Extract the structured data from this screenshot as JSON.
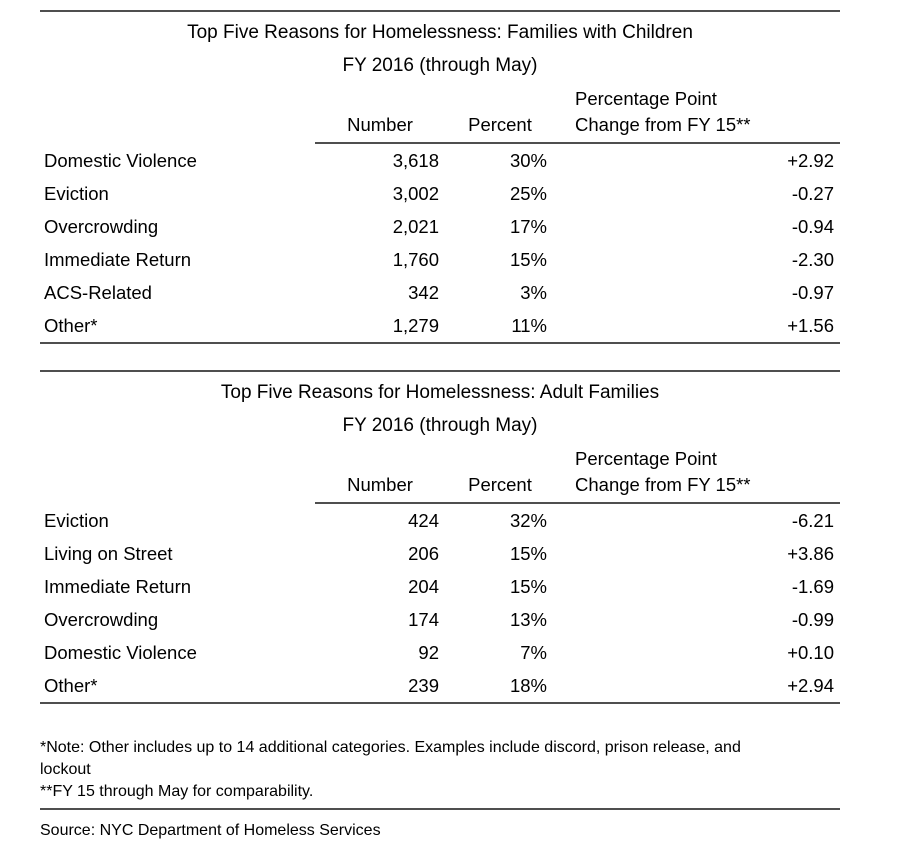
{
  "page": {
    "background_color": "#ffffff",
    "text_color": "#000000",
    "rule_color": "#4f4f4f"
  },
  "tables": [
    {
      "title_line1": "Top Five Reasons for Homelessness: Families with Children",
      "title_line2": "FY 2016 (through May)",
      "headers": {
        "number": "Number",
        "percent": "Percent",
        "change_line1": "Percentage Point",
        "change_line2": "Change from FY 15**"
      },
      "rows": [
        {
          "reason": "Domestic Violence",
          "number": "3,618",
          "percent": "30%",
          "change": "+2.92"
        },
        {
          "reason": "Eviction",
          "number": "3,002",
          "percent": "25%",
          "change": "-0.27"
        },
        {
          "reason": "Overcrowding",
          "number": "2,021",
          "percent": "17%",
          "change": "-0.94"
        },
        {
          "reason": "Immediate Return",
          "number": "1,760",
          "percent": "15%",
          "change": "-2.30"
        },
        {
          "reason": "ACS-Related",
          "number": "342",
          "percent": "3%",
          "change": "-0.97"
        },
        {
          "reason": "Other*",
          "number": "1,279",
          "percent": "11%",
          "change": "+1.56"
        }
      ]
    },
    {
      "title_line1": "Top Five Reasons for Homelessness: Adult Families",
      "title_line2": "FY 2016 (through May)",
      "headers": {
        "number": "Number",
        "percent": "Percent",
        "change_line1": "Percentage Point",
        "change_line2": "Change from FY 15**"
      },
      "rows": [
        {
          "reason": "Eviction",
          "number": "424",
          "percent": "32%",
          "change": "-6.21"
        },
        {
          "reason": "Living on Street",
          "number": "206",
          "percent": "15%",
          "change": "+3.86"
        },
        {
          "reason": "Immediate Return",
          "number": "204",
          "percent": "15%",
          "change": "-1.69"
        },
        {
          "reason": "Overcrowding",
          "number": "174",
          "percent": "13%",
          "change": "-0.99"
        },
        {
          "reason": "Domestic Violence",
          "number": "92",
          "percent": "7%",
          "change": "+0.10"
        },
        {
          "reason": "Other*",
          "number": "239",
          "percent": "18%",
          "change": "+2.94"
        }
      ]
    }
  ],
  "footnotes": [
    "*Note: Other includes up to 14 additional categories. Examples include discord, prison release, and lockout",
    "**FY 15 through May for comparability."
  ],
  "source": "Source: NYC Department of Homeless Services"
}
